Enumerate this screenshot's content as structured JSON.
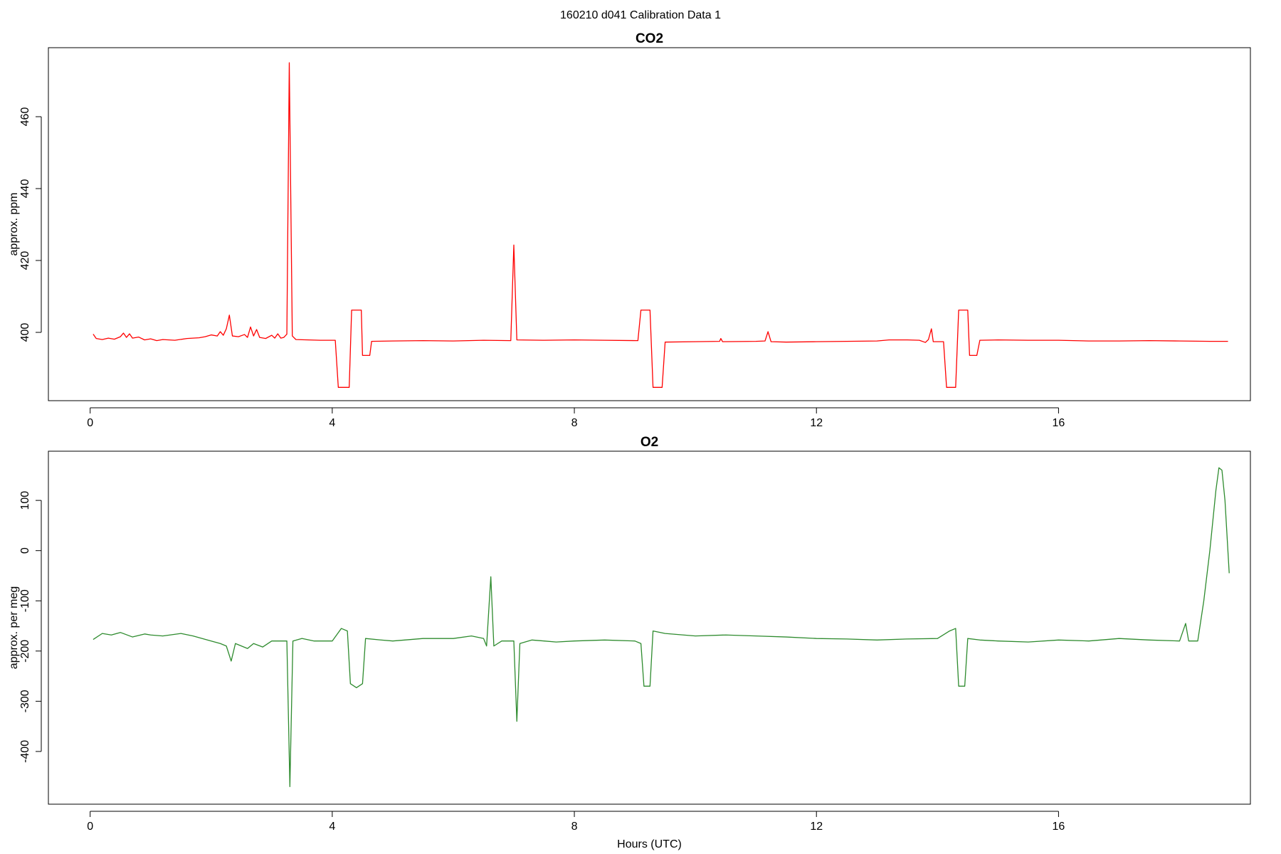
{
  "title": "160210   d041   Calibration Data 1",
  "chart_data": [
    {
      "type": "line",
      "title": "CO2",
      "ylabel": "approx. ppm",
      "color": "#ff0000",
      "xlim": [
        -0.69,
        19.17
      ],
      "ylim": [
        381.0,
        479.2
      ],
      "xticks": [
        0,
        4,
        8,
        12,
        16
      ],
      "yticks": [
        400,
        420,
        440,
        460
      ],
      "x": [
        0.05,
        0.1,
        0.2,
        0.3,
        0.4,
        0.5,
        0.55,
        0.6,
        0.65,
        0.7,
        0.8,
        0.9,
        1.0,
        1.1,
        1.2,
        1.4,
        1.6,
        1.8,
        1.9,
        2.0,
        2.1,
        2.15,
        2.2,
        2.25,
        2.3,
        2.35,
        2.45,
        2.55,
        2.6,
        2.65,
        2.7,
        2.75,
        2.8,
        2.9,
        3.0,
        3.05,
        3.1,
        3.15,
        3.2,
        3.25,
        3.29,
        3.34,
        3.4,
        3.6,
        3.8,
        4.05,
        4.1,
        4.28,
        4.32,
        4.48,
        4.5,
        4.62,
        4.65,
        5.0,
        5.5,
        6.0,
        6.5,
        6.95,
        7.0,
        7.05,
        7.5,
        8.0,
        8.5,
        9.05,
        9.1,
        9.25,
        9.3,
        9.45,
        9.5,
        10.0,
        10.4,
        10.42,
        10.45,
        11.0,
        11.15,
        11.2,
        11.25,
        11.5,
        12.0,
        12.5,
        13.0,
        13.2,
        13.5,
        13.7,
        13.8,
        13.85,
        13.9,
        13.93,
        14.1,
        14.15,
        14.3,
        14.35,
        14.5,
        14.53,
        14.65,
        14.7,
        15.0,
        15.5,
        16.0,
        16.5,
        17.0,
        17.5,
        18.0,
        18.5,
        18.8
      ],
      "values": [
        399.5,
        398.3,
        398.0,
        398.4,
        398.1,
        398.8,
        399.8,
        398.6,
        399.6,
        398.4,
        398.7,
        397.9,
        398.2,
        397.7,
        398.0,
        397.8,
        398.3,
        398.5,
        398.8,
        399.3,
        399.0,
        400.2,
        399.2,
        401.0,
        404.8,
        399.0,
        398.8,
        399.4,
        398.6,
        401.5,
        399.0,
        400.8,
        398.6,
        398.3,
        399.2,
        398.4,
        399.6,
        398.4,
        398.6,
        399.5,
        475.0,
        399.0,
        398.0,
        397.9,
        397.8,
        397.8,
        384.7,
        384.7,
        406.2,
        406.2,
        393.6,
        393.6,
        397.5,
        397.6,
        397.7,
        397.6,
        397.8,
        397.7,
        424.3,
        397.9,
        397.8,
        397.9,
        397.8,
        397.7,
        406.2,
        406.2,
        384.7,
        384.7,
        397.3,
        397.4,
        397.5,
        398.3,
        397.4,
        397.5,
        397.6,
        400.2,
        397.4,
        397.3,
        397.4,
        397.5,
        397.6,
        397.9,
        397.9,
        397.8,
        397.2,
        398.0,
        401.0,
        397.4,
        397.4,
        384.7,
        384.7,
        406.2,
        406.2,
        393.6,
        393.6,
        397.8,
        397.9,
        397.8,
        397.8,
        397.6,
        397.6,
        397.7,
        397.6,
        397.5,
        397.5
      ]
    },
    {
      "type": "line",
      "title": "O2",
      "ylabel": "approx. per meg",
      "xlabel": "Hours (UTC)",
      "color": "#2e8b2e",
      "xlim": [
        -0.69,
        19.17
      ],
      "ylim": [
        -505,
        198
      ],
      "xticks": [
        0,
        4,
        8,
        12,
        16
      ],
      "yticks": [
        -400,
        -300,
        -200,
        -100,
        0,
        100
      ],
      "x": [
        0.05,
        0.2,
        0.35,
        0.5,
        0.7,
        0.9,
        1.0,
        1.2,
        1.5,
        1.7,
        2.0,
        2.15,
        2.25,
        2.33,
        2.4,
        2.5,
        2.6,
        2.7,
        2.85,
        3.0,
        3.25,
        3.3,
        3.35,
        3.5,
        3.7,
        4.0,
        4.15,
        4.25,
        4.3,
        4.4,
        4.5,
        4.55,
        4.8,
        5.0,
        5.5,
        6.0,
        6.3,
        6.5,
        6.55,
        6.62,
        6.67,
        6.8,
        7.0,
        7.05,
        7.1,
        7.3,
        7.5,
        7.7,
        8.0,
        8.5,
        9.0,
        9.1,
        9.15,
        9.25,
        9.3,
        9.5,
        10.0,
        10.5,
        11.0,
        11.5,
        12.0,
        12.5,
        13.0,
        13.5,
        14.0,
        14.2,
        14.3,
        14.35,
        14.45,
        14.5,
        14.7,
        15.0,
        15.5,
        16.0,
        16.5,
        17.0,
        17.5,
        18.0,
        18.1,
        18.15,
        18.3,
        18.4,
        18.5,
        18.6,
        18.65,
        18.7,
        18.75,
        18.82
      ],
      "values": [
        -177,
        -165,
        -168,
        -163,
        -172,
        -166,
        -168,
        -170,
        -165,
        -170,
        -180,
        -185,
        -190,
        -220,
        -185,
        -190,
        -195,
        -185,
        -192,
        -180,
        -180,
        -470,
        -180,
        -175,
        -180,
        -180,
        -155,
        -160,
        -265,
        -273,
        -265,
        -175,
        -178,
        -180,
        -175,
        -175,
        -170,
        -175,
        -190,
        -52,
        -190,
        -180,
        -180,
        -340,
        -185,
        -178,
        -180,
        -182,
        -180,
        -178,
        -180,
        -185,
        -270,
        -270,
        -160,
        -165,
        -170,
        -168,
        -170,
        -172,
        -175,
        -176,
        -178,
        -176,
        -175,
        -160,
        -155,
        -270,
        -270,
        -175,
        -178,
        -180,
        -182,
        -178,
        -180,
        -175,
        -178,
        -180,
        -145,
        -180,
        -180,
        -100,
        0,
        120,
        165,
        160,
        100,
        -45
      ]
    }
  ]
}
